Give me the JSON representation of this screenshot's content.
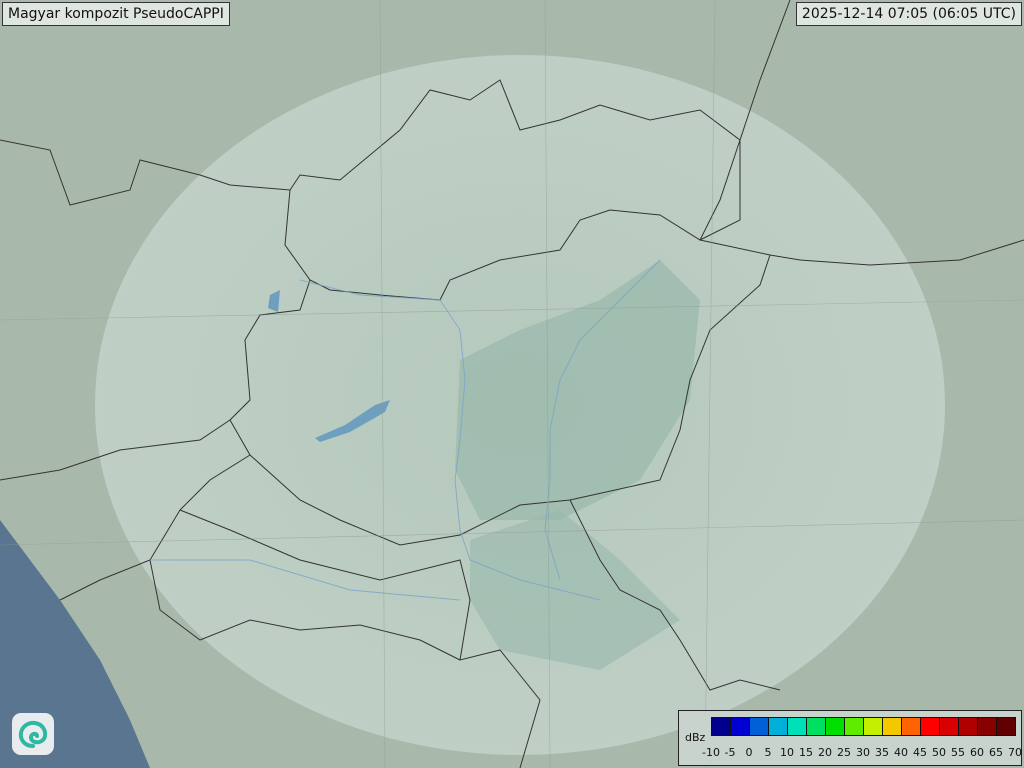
{
  "header": {
    "title": "Magyar kompozit  PseudoCAPPI",
    "timestamp": "2025-12-14 07:05 (06:05 UTC)"
  },
  "logo": {
    "icon": "swirl-logo-icon"
  },
  "legend": {
    "unit": "dBz",
    "ticks": [
      "-10",
      "-5",
      "0",
      "5",
      "10",
      "15",
      "20",
      "25",
      "30",
      "35",
      "40",
      "45",
      "50",
      "55",
      "60",
      "65",
      "70"
    ],
    "colors": [
      "#00008c",
      "#0000d2",
      "#0060d8",
      "#00b0d8",
      "#00e0b8",
      "#00e060",
      "#00e000",
      "#60ec00",
      "#c4f000",
      "#f4c800",
      "#ff6400",
      "#ff0000",
      "#d80000",
      "#b00000",
      "#880000",
      "#600000"
    ]
  },
  "map": {
    "radar_coverage": true,
    "echoes": "none significant"
  }
}
